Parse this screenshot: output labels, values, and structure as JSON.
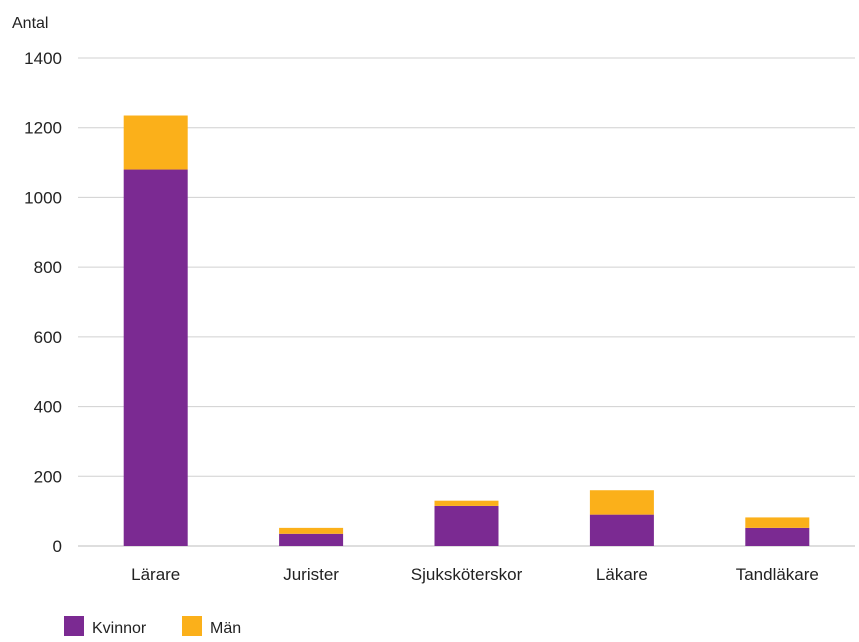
{
  "chart_data": {
    "type": "bar",
    "stacked": true,
    "ylabel": "Antal",
    "xlabel": "",
    "ylim": [
      0,
      1400
    ],
    "yticks": [
      0,
      200,
      400,
      600,
      800,
      1000,
      1200,
      1400
    ],
    "grid": true,
    "legend_position": "bottom-left",
    "categories": [
      "Lärare",
      "Jurister",
      "Sjuksköterskor",
      "Läkare",
      "Tandläkare"
    ],
    "series": [
      {
        "name": "Kvinnor",
        "color": "#7b2a92",
        "values": [
          1080,
          35,
          115,
          90,
          52
        ]
      },
      {
        "name": "Män",
        "color": "#fbb01a",
        "values": [
          155,
          17,
          15,
          70,
          30
        ]
      }
    ]
  }
}
